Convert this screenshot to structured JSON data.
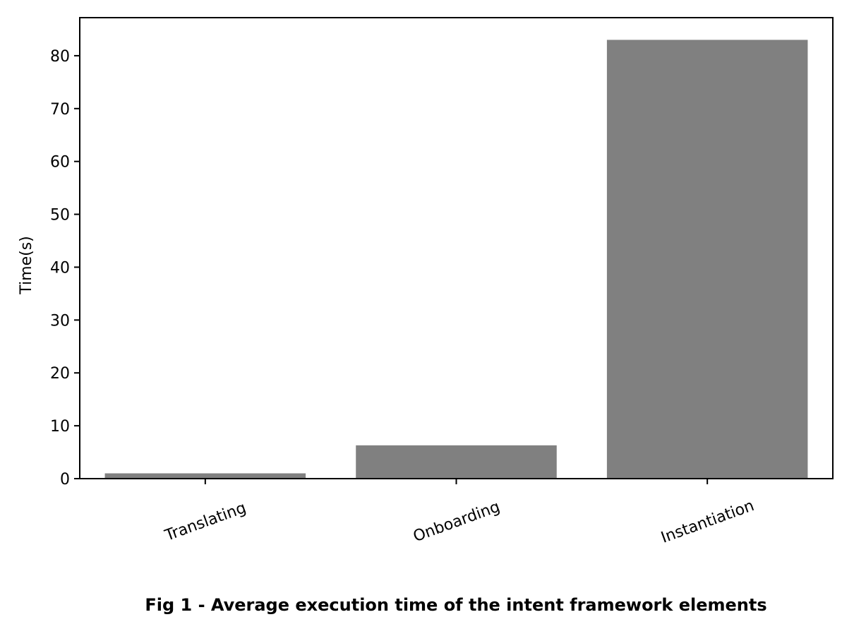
{
  "chart_data": {
    "type": "bar",
    "categories": [
      "Translating",
      "Onboarding",
      "Instantiation"
    ],
    "values": [
      1.0,
      6.3,
      83.0
    ],
    "ylabel": "Time(s)",
    "xlabel": "",
    "yticks": [
      0,
      10,
      20,
      30,
      40,
      50,
      60,
      70,
      80
    ],
    "ylim": [
      0,
      87.2
    ],
    "grid": false,
    "bar_color": "#808080",
    "caption": "Fig 1 - Average execution time of the intent framework elements"
  }
}
